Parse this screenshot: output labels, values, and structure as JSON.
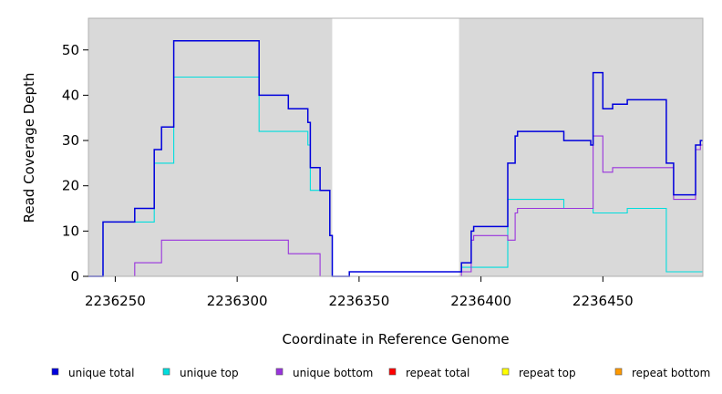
{
  "chart_data": {
    "type": "line",
    "step": true,
    "xlabel": "Coordinate in Reference Genome",
    "ylabel": "Read Coverage Depth",
    "xlim": [
      2236239,
      2236491
    ],
    "ylim": [
      0,
      57
    ],
    "x_ticks": [
      2236250,
      2236300,
      2236350,
      2236400,
      2236450
    ],
    "y_ticks": [
      0,
      10,
      20,
      30,
      40,
      50
    ],
    "background_color": "#d9d9d9",
    "uncovered_regions": [
      [
        2236339,
        2236391
      ]
    ],
    "legend_position": "bottom",
    "series": [
      {
        "name": "unique total",
        "color": "#0000dd",
        "points": [
          [
            2236239,
            0
          ],
          [
            2236245,
            0
          ],
          [
            2236245,
            12
          ],
          [
            2236258,
            12
          ],
          [
            2236258,
            15
          ],
          [
            2236266,
            15
          ],
          [
            2236266,
            28
          ],
          [
            2236269,
            28
          ],
          [
            2236269,
            33
          ],
          [
            2236274,
            33
          ],
          [
            2236274,
            52
          ],
          [
            2236309,
            52
          ],
          [
            2236309,
            40
          ],
          [
            2236321,
            40
          ],
          [
            2236321,
            37
          ],
          [
            2236329,
            37
          ],
          [
            2236329,
            34
          ],
          [
            2236330,
            34
          ],
          [
            2236330,
            24
          ],
          [
            2236334,
            24
          ],
          [
            2236334,
            19
          ],
          [
            2236338,
            19
          ],
          [
            2236338,
            9
          ],
          [
            2236339,
            9
          ],
          [
            2236339,
            0
          ],
          [
            2236346,
            0
          ],
          [
            2236346,
            1
          ],
          [
            2236392,
            1
          ],
          [
            2236392,
            3
          ],
          [
            2236396,
            3
          ],
          [
            2236396,
            10
          ],
          [
            2236397,
            10
          ],
          [
            2236397,
            11
          ],
          [
            2236411,
            11
          ],
          [
            2236411,
            25
          ],
          [
            2236414,
            25
          ],
          [
            2236414,
            31
          ],
          [
            2236415,
            31
          ],
          [
            2236415,
            32
          ],
          [
            2236434,
            32
          ],
          [
            2236434,
            30
          ],
          [
            2236445,
            30
          ],
          [
            2236445,
            29
          ],
          [
            2236446,
            29
          ],
          [
            2236446,
            45
          ],
          [
            2236450,
            45
          ],
          [
            2236450,
            37
          ],
          [
            2236454,
            37
          ],
          [
            2236454,
            38
          ],
          [
            2236460,
            38
          ],
          [
            2236460,
            39
          ],
          [
            2236476,
            39
          ],
          [
            2236476,
            25
          ],
          [
            2236479,
            25
          ],
          [
            2236479,
            18
          ],
          [
            2236488,
            18
          ],
          [
            2236488,
            29
          ],
          [
            2236490,
            29
          ],
          [
            2236490,
            30
          ],
          [
            2236491,
            30
          ]
        ]
      },
      {
        "name": "unique top",
        "color": "#00dddd",
        "points": [
          [
            2236239,
            0
          ],
          [
            2236245,
            0
          ],
          [
            2236245,
            12
          ],
          [
            2236266,
            12
          ],
          [
            2236266,
            25
          ],
          [
            2236274,
            25
          ],
          [
            2236274,
            44
          ],
          [
            2236309,
            44
          ],
          [
            2236309,
            32
          ],
          [
            2236329,
            32
          ],
          [
            2236329,
            29
          ],
          [
            2236330,
            29
          ],
          [
            2236330,
            19
          ],
          [
            2236338,
            19
          ],
          [
            2236338,
            9
          ],
          [
            2236339,
            9
          ],
          [
            2236339,
            0
          ],
          [
            2236346,
            0
          ],
          [
            2236346,
            1
          ],
          [
            2236392,
            1
          ],
          [
            2236392,
            2
          ],
          [
            2236411,
            2
          ],
          [
            2236411,
            17
          ],
          [
            2236434,
            17
          ],
          [
            2236434,
            15
          ],
          [
            2236446,
            15
          ],
          [
            2236446,
            14
          ],
          [
            2236460,
            14
          ],
          [
            2236460,
            15
          ],
          [
            2236476,
            15
          ],
          [
            2236476,
            1
          ],
          [
            2236491,
            1
          ]
        ]
      },
      {
        "name": "unique bottom",
        "color": "#9933dd",
        "points": [
          [
            2236239,
            0
          ],
          [
            2236258,
            0
          ],
          [
            2236258,
            3
          ],
          [
            2236269,
            3
          ],
          [
            2236269,
            8
          ],
          [
            2236321,
            8
          ],
          [
            2236321,
            5
          ],
          [
            2236334,
            5
          ],
          [
            2236334,
            0
          ],
          [
            2236392,
            0
          ],
          [
            2236392,
            1
          ],
          [
            2236396,
            1
          ],
          [
            2236396,
            8
          ],
          [
            2236397,
            8
          ],
          [
            2236397,
            9
          ],
          [
            2236411,
            9
          ],
          [
            2236411,
            8
          ],
          [
            2236414,
            8
          ],
          [
            2236414,
            14
          ],
          [
            2236415,
            14
          ],
          [
            2236415,
            15
          ],
          [
            2236446,
            15
          ],
          [
            2236446,
            31
          ],
          [
            2236450,
            31
          ],
          [
            2236450,
            23
          ],
          [
            2236454,
            23
          ],
          [
            2236454,
            24
          ],
          [
            2236479,
            24
          ],
          [
            2236479,
            17
          ],
          [
            2236488,
            17
          ],
          [
            2236488,
            28
          ],
          [
            2236490,
            28
          ],
          [
            2236490,
            29
          ],
          [
            2236491,
            29
          ]
        ]
      },
      {
        "name": "repeat total",
        "color": "#ff0000",
        "points": [
          [
            2236239,
            0
          ],
          [
            2236491,
            0
          ]
        ]
      },
      {
        "name": "repeat top",
        "color": "#ffff00",
        "points": [
          [
            2236239,
            0
          ],
          [
            2236491,
            0
          ]
        ]
      },
      {
        "name": "repeat bottom",
        "color": "#ff9900",
        "points": [
          [
            2236239,
            0
          ],
          [
            2236491,
            0
          ]
        ]
      }
    ]
  }
}
